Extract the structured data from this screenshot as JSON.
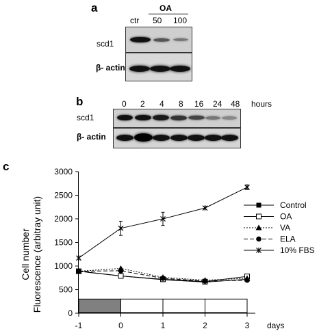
{
  "panel_a": {
    "letter": "a",
    "treatment": "OA",
    "lanes": [
      "ctr",
      "50",
      "100"
    ],
    "rows": [
      "scd1",
      "β- actin"
    ]
  },
  "panel_b": {
    "letter": "b",
    "timepoints": [
      "0",
      "2",
      "4",
      "8",
      "16",
      "24",
      "48"
    ],
    "unit": "hours",
    "rows": [
      "scd1",
      "β- actin"
    ]
  },
  "panel_c": {
    "letter": "c",
    "ylabel_line1": "Cell number",
    "ylabel_line2": "Fluorescence (arbitray unit)",
    "xlabel": "days"
  },
  "chart_data": {
    "type": "line",
    "x": [
      -1,
      0,
      1,
      2,
      3
    ],
    "xticks": [
      "-1",
      "0",
      "1",
      "2",
      "3"
    ],
    "ylim": [
      0,
      3000
    ],
    "yticks": [
      "0",
      "500",
      "1000",
      "1500",
      "2000",
      "2500",
      "3000"
    ],
    "xlabel": "days",
    "ylabel": "Cell number Fluorescence (arbitray unit)",
    "grid": false,
    "legend_placement": "right",
    "series": [
      {
        "name": "Control",
        "marker": "filled-square",
        "dash": "solid",
        "values": [
          890,
          790,
          710,
          660,
          720
        ]
      },
      {
        "name": "OA",
        "marker": "open-square",
        "dash": "solid",
        "values": [
          890,
          790,
          720,
          670,
          780
        ]
      },
      {
        "name": "VA",
        "marker": "filled-triangle",
        "dash": "dotted",
        "values": [
          890,
          950,
          760,
          700,
          740
        ]
      },
      {
        "name": "ELA",
        "marker": "filled-circle",
        "dash": "dashed",
        "values": [
          890,
          900,
          740,
          680,
          700
        ]
      },
      {
        "name": "10% FBS",
        "marker": "asterisk",
        "dash": "solid",
        "values": [
          1170,
          1800,
          2000,
          2230,
          2670
        ],
        "errors": [
          20,
          150,
          140,
          25,
          50
        ]
      }
    ]
  }
}
